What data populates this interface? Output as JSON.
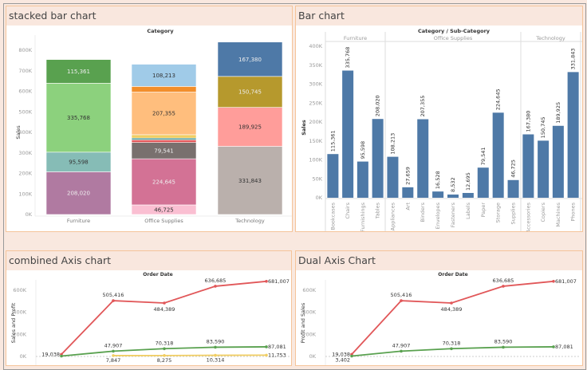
{
  "panels": {
    "stacked": "stacked bar chart",
    "bar": "Bar chart",
    "combined": "combined Axis chart",
    "dual": "Dual Axis Chart"
  },
  "chart_data": [
    {
      "type": "bar",
      "stacked": true,
      "title": "Category",
      "ylabel": "Sales",
      "ylim": [
        0,
        800000
      ],
      "yticks": [
        "0K",
        "100K",
        "200K",
        "300K",
        "400K",
        "500K",
        "600K",
        "700K",
        "800K"
      ],
      "categories": [
        "Furniture",
        "Office Supplies",
        "Technology"
      ],
      "stacks": [
        [
          {
            "name": "Tables",
            "value": 208020,
            "color": "#b07aa1",
            "label": "208,020"
          },
          {
            "name": "Furnishings",
            "value": 95598,
            "color": "#86bcb6",
            "label": "95,598"
          },
          {
            "name": "Chairs",
            "value": 335768,
            "color": "#8cd17d",
            "label": "335,768"
          },
          {
            "name": "Bookcases",
            "value": 115361,
            "color": "#59a14f",
            "label": "115,361"
          }
        ],
        [
          {
            "name": "Supplies",
            "value": 46725,
            "color": "#fabfd2",
            "label": "46,725"
          },
          {
            "name": "Storage",
            "value": 224645,
            "color": "#d37295",
            "label": "224,645"
          },
          {
            "name": "Paper",
            "value": 79541,
            "color": "#79706e",
            "label": "79,541"
          },
          {
            "name": "Labels",
            "value": 12695,
            "color": "#e15759",
            "label": ""
          },
          {
            "name": "Fasteners",
            "value": 8532,
            "color": "#499894",
            "label": ""
          },
          {
            "name": "Envelopes",
            "value": 16528,
            "color": "#f1ce63",
            "label": ""
          },
          {
            "name": "Binders",
            "value": 207355,
            "color": "#ffbe7d",
            "label": "207,355"
          },
          {
            "name": "Art",
            "value": 27659,
            "color": "#f28e2b",
            "label": ""
          },
          {
            "name": "Appliances",
            "value": 108213,
            "color": "#a0cbe8",
            "label": "108,213"
          }
        ],
        [
          {
            "name": "Phones",
            "value": 331843,
            "color": "#bab0ac",
            "label": "331,843"
          },
          {
            "name": "Machines",
            "value": 189925,
            "color": "#ff9d9a",
            "label": "189,925"
          },
          {
            "name": "Copiers",
            "value": 150745,
            "color": "#b6992d",
            "label": "150,745"
          },
          {
            "name": "Accessories",
            "value": 167380,
            "color": "#4e79a7",
            "label": "167,380"
          }
        ]
      ]
    },
    {
      "type": "bar",
      "title": "Category / Sub-Category",
      "ylabel": "Sales",
      "ylim": [
        0,
        400000
      ],
      "yticks": [
        "0K",
        "50K",
        "100K",
        "150K",
        "200K",
        "250K",
        "300K",
        "350K",
        "400K"
      ],
      "color": "#4e79a7",
      "groups": [
        {
          "name": "Furniture",
          "categories": [
            "Bookcases",
            "Chairs",
            "Furnishings",
            "Tables"
          ],
          "values": [
            115361,
            335768,
            95598,
            208020
          ],
          "labels": [
            "115,361",
            "335,768",
            "95,598",
            "208,020"
          ]
        },
        {
          "name": "Office Supplies",
          "categories": [
            "Appliances",
            "Art",
            "Binders",
            "Envelopes",
            "Fasteners",
            "Labels",
            "Paper",
            "Storage",
            "Supplies"
          ],
          "values": [
            108213,
            27659,
            207355,
            16528,
            8532,
            12695,
            79541,
            224645,
            46725
          ],
          "labels": [
            "108,213",
            "27,659",
            "207,355",
            "16,528",
            "8,532",
            "12,695",
            "79,541",
            "224,645",
            "46,725"
          ]
        },
        {
          "name": "Technology",
          "categories": [
            "Accessories",
            "Copiers",
            "Machines",
            "Phones"
          ],
          "values": [
            167380,
            150745,
            189925,
            331843
          ],
          "labels": [
            "167,380",
            "150,745",
            "189,925",
            "331,843"
          ]
        }
      ]
    },
    {
      "type": "line",
      "title": "Order Date",
      "ylabel": "Sales and Profit",
      "ylim": [
        0,
        700000
      ],
      "yticks": [
        "0K",
        "200K",
        "400K",
        "600K"
      ],
      "series": [
        {
          "color": "#e15759",
          "values": [
            19038,
            505416,
            484389,
            636685,
            681007
          ],
          "labels": [
            "19,038",
            "505,416",
            "484,389",
            "636,685",
            "681,007"
          ]
        },
        {
          "color": "#59a14f",
          "values": [
            3402,
            47907,
            70318,
            83590,
            87081
          ],
          "labels": [
            "",
            "47,907",
            "70,318",
            "83,590",
            "87,081"
          ]
        },
        {
          "color": "#f1ce63",
          "values": [
            null,
            7847,
            8275,
            10314,
            11753
          ],
          "labels": [
            "",
            "7,847",
            "8,275",
            "10,314",
            "11,753"
          ]
        }
      ]
    },
    {
      "type": "line",
      "title": "Order Date",
      "ylabel": "Profit and Sales",
      "ylim": [
        0,
        700000
      ],
      "yticks": [
        "0K",
        "200K",
        "400K",
        "600K"
      ],
      "series": [
        {
          "color": "#e15759",
          "values": [
            19038,
            505416,
            484389,
            636685,
            681007
          ],
          "labels": [
            "19,038",
            "505,416",
            "484,389",
            "636,685",
            "681,007"
          ]
        },
        {
          "color": "#59a14f",
          "values": [
            3402,
            47907,
            70318,
            83590,
            87081
          ],
          "labels": [
            "3,402",
            "47,907",
            "70,318",
            "83,590",
            "87,081"
          ]
        }
      ]
    }
  ]
}
